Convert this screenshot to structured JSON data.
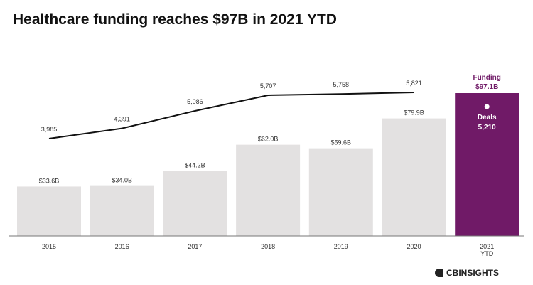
{
  "title": "Healthcare funding reaches $97B in 2021 YTD",
  "brand": "CBINSIGHTS",
  "colors": {
    "bar": "#e3e1e1",
    "highlight_bar": "#701a67",
    "line": "#111111",
    "highlight_text": "#701a67",
    "highlight_inner_text": "#ffffff"
  },
  "chart_data": {
    "type": "bar",
    "categories": [
      "2015",
      "2016",
      "2017",
      "2018",
      "2019",
      "2020",
      "2021\nYTD"
    ],
    "series": [
      {
        "name": "Funding",
        "type": "bar",
        "values": [
          33.6,
          34.0,
          44.2,
          62.0,
          59.6,
          79.9,
          97.1
        ],
        "labels": [
          "$33.6B",
          "$34.0B",
          "$44.2B",
          "$62.0B",
          "$59.6B",
          "$79.9B",
          "$97.1B"
        ]
      },
      {
        "name": "Deals",
        "type": "line",
        "values": [
          3985,
          4391,
          5086,
          5707,
          5758,
          5821,
          5210
        ],
        "labels": [
          "3,985",
          "4,391",
          "5,086",
          "5,707",
          "5,758",
          "5,821",
          "5,210"
        ]
      }
    ],
    "highlight": {
      "category": "2021\nYTD",
      "funding_label": "Funding",
      "funding_value": "$97.1B",
      "deals_label": "Deals",
      "deals_value": "5,210"
    },
    "title": "Healthcare funding reaches $97B in 2021 YTD",
    "xlabel": "",
    "ylabel": "",
    "ylim": [
      0,
      100
    ],
    "grid": false
  }
}
